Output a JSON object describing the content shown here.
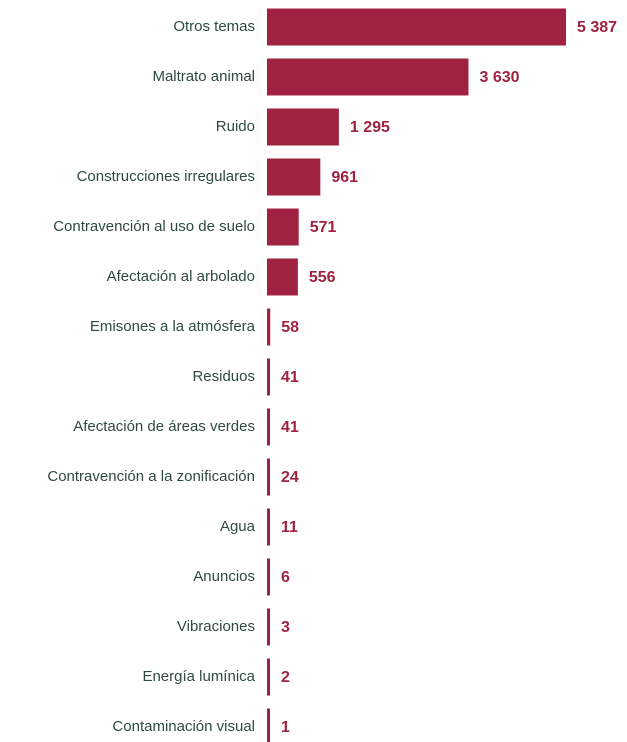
{
  "chart_data": {
    "type": "bar",
    "orientation": "horizontal",
    "color": "#9f2241",
    "categories": [
      "Otros temas",
      "Maltrato animal",
      "Ruido",
      "Construcciones irregulares",
      "Contravención al uso de suelo",
      "Afectación al arbolado",
      "Emisones a la atmósfera",
      "Residuos",
      "Afectación de áreas verdes",
      "Contravención a la zonificación",
      "Agua",
      "Anuncios",
      "Vibraciones",
      "Energía lumínica",
      "Contaminación visual"
    ],
    "values": [
      5387,
      3630,
      1295,
      961,
      571,
      556,
      58,
      41,
      41,
      24,
      11,
      6,
      3,
      2,
      1
    ],
    "value_labels": [
      "5 387",
      "3 630",
      "1 295",
      "961",
      "571",
      "556",
      "58",
      "41",
      "41",
      "24",
      "11",
      "6",
      "3",
      "2",
      "1"
    ]
  }
}
